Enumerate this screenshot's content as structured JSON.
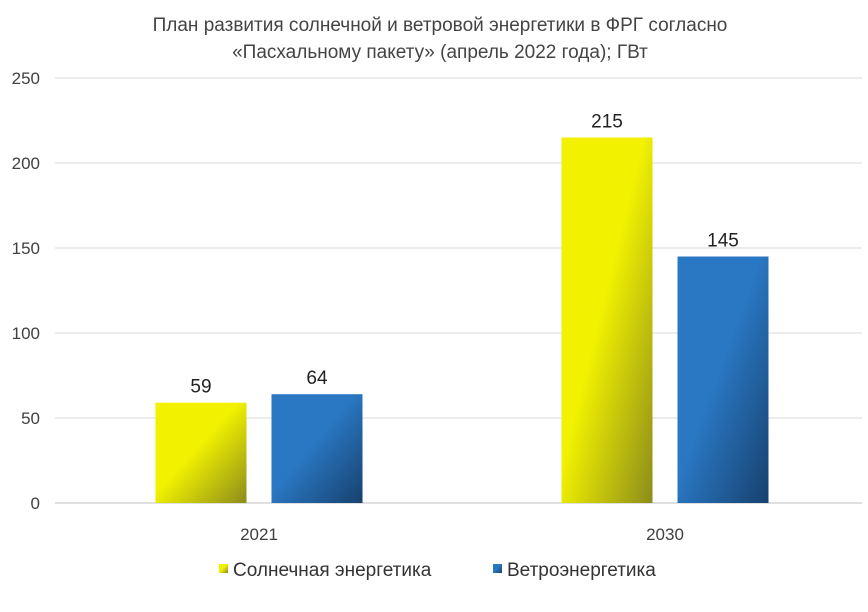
{
  "chart_data": {
    "type": "bar",
    "title_line1": "План развития солнечной и ветровой энергетики в ФРГ согласно",
    "title_line2": "«Пасхальному пакету» (апрель 2022 года); ГВт",
    "categories": [
      "2021",
      "2030"
    ],
    "series": [
      {
        "name": "Солнечная энергетика",
        "values": [
          59,
          215
        ],
        "color": "#f2f200",
        "color_dark": "#8c8c1a"
      },
      {
        "name": "Ветроэнергетика",
        "values": [
          64,
          145
        ],
        "color": "#2a78c4",
        "color_dark": "#17416e"
      }
    ],
    "ylim": [
      0,
      250
    ],
    "yticks": [
      0,
      50,
      100,
      150,
      200,
      250
    ],
    "grid": true,
    "legend": "bottom",
    "data_labels": true
  }
}
